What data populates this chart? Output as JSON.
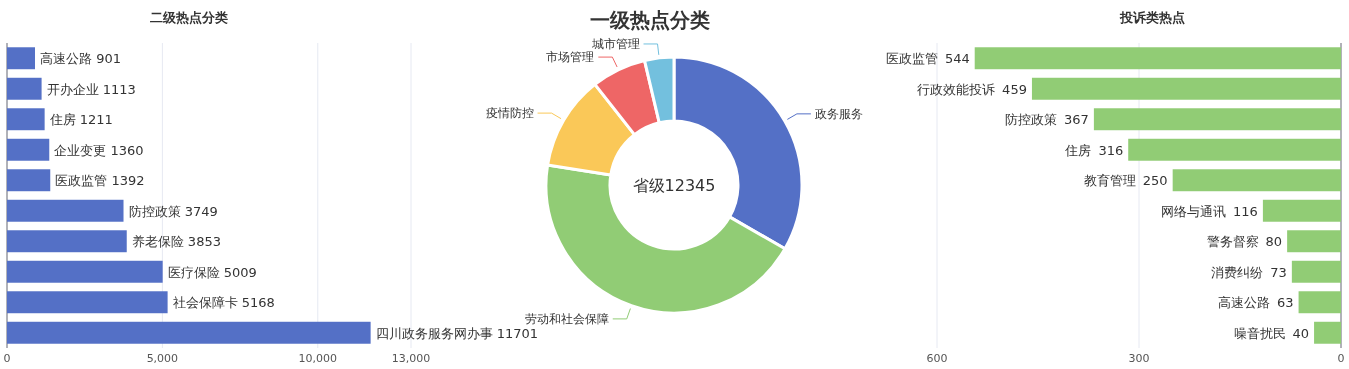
{
  "chart_data": [
    {
      "type": "bar",
      "orientation": "horizontal",
      "title": "二级热点分类",
      "categories": [
        null,
        null,
        null,
        null,
        null,
        null,
        null,
        null,
        null,
        null
      ],
      "values": [
        901,
        1113,
        1211,
        1360,
        1392,
        3749,
        3853,
        5009,
        5168,
        11701
      ],
      "value_labels": [
        "高速公路  901",
        "开办企业  1113",
        "住房  1211",
        "企业变更  1360",
        "医政监管   1392",
        "防控政策  3749",
        "养老保险  3853",
        "医疗保险  5009",
        "社会保障卡  5168",
        "四川政务服务网办事  11701"
      ],
      "color": "#5470c6",
      "xlim": [
        0,
        13000
      ],
      "xticks": [
        0,
        {
          "value": 5000,
          "label": "5,000"
        },
        {
          "value": 10000,
          "label": "10,000"
        },
        {
          "value": 13000,
          "label": "13,000"
        }
      ],
      "grid": "x",
      "tick_labels": "x"
    },
    {
      "type": "donut",
      "title": "一级热点分类",
      "categories": [
        "政务服务",
        "劳动和社会保障",
        "疫情防控",
        "市场管理",
        "城市管理"
      ],
      "values": [
        33.3,
        44.2,
        11.9,
        6.9,
        3.7
      ],
      "colors": [
        "#5470c6",
        "#91cc75",
        "#fac858",
        "#ee6666",
        "#73c0de"
      ],
      "annotations": [
        "省级12345"
      ]
    },
    {
      "type": "bar",
      "orientation": "horizontal",
      "title": "投诉类热点",
      "categories": [
        "医政监管",
        "行政效能投诉",
        "防控政策",
        "住房",
        "教育管理",
        "网络与通讯",
        "警务督察",
        "消费纠纷",
        "高速公路",
        "噪音扰民"
      ],
      "values": [
        544,
        459,
        367,
        316,
        250,
        116,
        80,
        73,
        63,
        40
      ],
      "color": "#91cc75",
      "xlim": [
        600,
        0
      ],
      "xticks": [
        600,
        300,
        0
      ],
      "grid": "x",
      "data_labels": true,
      "tick_labels": "x"
    }
  ]
}
